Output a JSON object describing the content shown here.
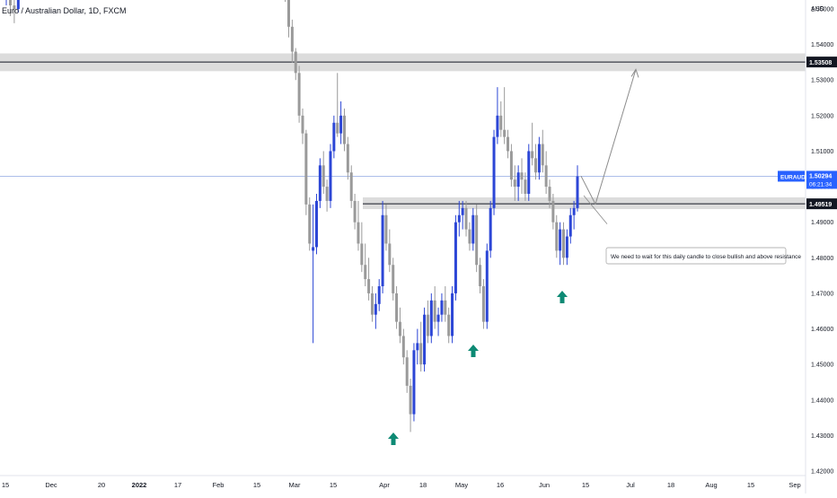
{
  "chart_data": {
    "type": "candlestick",
    "title": "Euro / Australian Dollar, 1D, FXCM",
    "currency": "AUD",
    "symbol": "EURAUD",
    "last_price": 1.50294,
    "countdown": "06:21:34",
    "ylim": [
      1.42,
      1.563
    ],
    "y_ticks": [
      1.42,
      1.43,
      1.44,
      1.45,
      1.46,
      1.47,
      1.48,
      1.49,
      1.5,
      1.51,
      1.52,
      1.53,
      1.54,
      1.55
    ],
    "x_ticks": [
      "15",
      "Dec",
      "20",
      "2022",
      "17",
      "Feb",
      "15",
      "Mar",
      "15",
      "Apr",
      "18",
      "May",
      "16",
      "Jun",
      "15",
      "Jul",
      "18",
      "Aug",
      "15",
      "Sep"
    ],
    "levels": [
      {
        "name": "resistance-upper",
        "value": 1.53508,
        "label": "1.53508",
        "zone": [
          1.5325,
          1.5375
        ]
      },
      {
        "name": "resistance-lower",
        "value": 1.49519,
        "label": "1.49519",
        "zone": [
          1.4937,
          1.497
        ]
      }
    ],
    "annotation": "We need to wait for this daily candle to close bullish and above resistance",
    "arrows": [
      {
        "label": "higher-low-1",
        "date_index": 0
      },
      {
        "label": "higher-low-2",
        "date_index": 1
      },
      {
        "label": "higher-low-3",
        "date_index": 2
      }
    ],
    "bullish_color": "#2c46d6",
    "bearish_color": "#9a9a9a",
    "arrow_color": "#0d8a74",
    "candles": [
      [
        1.556,
        1.564,
        1.551,
        1.56
      ],
      [
        1.56,
        1.562,
        1.548,
        1.551
      ],
      [
        1.551,
        1.556,
        1.546,
        1.55
      ],
      [
        1.55,
        1.564,
        1.549,
        1.561
      ],
      [
        1.561,
        1.566,
        1.556,
        1.558
      ],
      [
        1.558,
        1.564,
        1.553,
        1.562
      ],
      [
        1.562,
        1.565,
        1.555,
        1.557
      ],
      [
        1.557,
        1.562,
        1.554,
        1.56
      ],
      [
        1.56,
        1.565,
        1.558,
        1.564
      ],
      [
        1.564,
        1.566,
        1.558,
        1.56
      ],
      [
        1.572,
        1.576,
        1.568,
        1.57
      ],
      [
        1.57,
        1.574,
        1.566,
        1.568
      ],
      [
        1.568,
        1.57,
        1.56,
        1.562
      ],
      [
        1.562,
        1.568,
        1.559,
        1.566
      ],
      [
        1.566,
        1.57,
        1.564,
        1.568
      ],
      [
        1.568,
        1.57,
        1.56,
        1.562
      ],
      [
        1.562,
        1.566,
        1.558,
        1.56
      ],
      [
        1.56,
        1.564,
        1.556,
        1.558
      ],
      [
        1.558,
        1.562,
        1.552,
        1.556
      ],
      [
        1.556,
        1.558,
        1.542,
        1.545
      ],
      [
        1.545,
        1.547,
        1.535,
        1.538
      ],
      [
        1.538,
        1.539,
        1.53,
        1.532
      ],
      [
        1.532,
        1.534,
        1.518,
        1.52
      ],
      [
        1.52,
        1.522,
        1.512,
        1.515
      ],
      [
        1.515,
        1.516,
        1.492,
        1.495
      ],
      [
        1.495,
        1.497,
        1.482,
        1.484
      ],
      [
        1.482,
        1.495,
        1.456,
        1.483
      ],
      [
        1.483,
        1.498,
        1.481,
        1.496
      ],
      [
        1.496,
        1.508,
        1.494,
        1.506
      ],
      [
        1.506,
        1.51,
        1.498,
        1.5
      ],
      [
        1.5,
        1.502,
        1.493,
        1.496
      ],
      [
        1.496,
        1.512,
        1.494,
        1.51
      ],
      [
        1.51,
        1.52,
        1.508,
        1.518
      ],
      [
        1.518,
        1.532,
        1.514,
        1.515
      ],
      [
        1.515,
        1.524,
        1.512,
        1.52
      ],
      [
        1.52,
        1.522,
        1.51,
        1.512
      ],
      [
        1.512,
        1.514,
        1.502,
        1.504
      ],
      [
        1.504,
        1.506,
        1.494,
        1.496
      ],
      [
        1.496,
        1.498,
        1.488,
        1.49
      ],
      [
        1.49,
        1.496,
        1.482,
        1.484
      ],
      [
        1.484,
        1.49,
        1.476,
        1.478
      ],
      [
        1.478,
        1.484,
        1.472,
        1.474
      ],
      [
        1.474,
        1.48,
        1.468,
        1.47
      ],
      [
        1.47,
        1.472,
        1.462,
        1.464
      ],
      [
        1.464,
        1.47,
        1.46,
        1.467
      ],
      [
        1.467,
        1.474,
        1.465,
        1.472
      ],
      [
        1.472,
        1.496,
        1.47,
        1.492
      ],
      [
        1.492,
        1.495,
        1.482,
        1.484
      ],
      [
        1.484,
        1.488,
        1.476,
        1.478
      ],
      [
        1.478,
        1.48,
        1.468,
        1.47
      ],
      [
        1.47,
        1.472,
        1.46,
        1.462
      ],
      [
        1.462,
        1.466,
        1.456,
        1.458
      ],
      [
        1.458,
        1.46,
        1.45,
        1.452
      ],
      [
        1.452,
        1.454,
        1.442,
        1.444
      ],
      [
        1.444,
        1.446,
        1.431,
        1.436
      ],
      [
        1.436,
        1.456,
        1.434,
        1.454
      ],
      [
        1.454,
        1.46,
        1.45,
        1.456
      ],
      [
        1.456,
        1.462,
        1.448,
        1.45
      ],
      [
        1.45,
        1.466,
        1.448,
        1.464
      ],
      [
        1.464,
        1.468,
        1.456,
        1.458
      ],
      [
        1.458,
        1.47,
        1.456,
        1.468
      ],
      [
        1.468,
        1.472,
        1.46,
        1.462
      ],
      [
        1.462,
        1.466,
        1.458,
        1.464
      ],
      [
        1.464,
        1.47,
        1.462,
        1.468
      ],
      [
        1.468,
        1.472,
        1.462,
        1.464
      ],
      [
        1.464,
        1.466,
        1.456,
        1.458
      ],
      [
        1.458,
        1.472,
        1.456,
        1.47
      ],
      [
        1.47,
        1.492,
        1.468,
        1.49
      ],
      [
        1.49,
        1.496,
        1.486,
        1.492
      ],
      [
        1.492,
        1.496,
        1.488,
        1.494
      ],
      [
        1.494,
        1.496,
        1.486,
        1.488
      ],
      [
        1.488,
        1.49,
        1.482,
        1.484
      ],
      [
        1.484,
        1.494,
        1.482,
        1.492
      ],
      [
        1.492,
        1.495,
        1.476,
        1.478
      ],
      [
        1.478,
        1.48,
        1.47,
        1.472
      ],
      [
        1.472,
        1.474,
        1.46,
        1.462
      ],
      [
        1.462,
        1.484,
        1.46,
        1.482
      ],
      [
        1.482,
        1.496,
        1.48,
        1.494
      ],
      [
        1.494,
        1.516,
        1.492,
        1.514
      ],
      [
        1.514,
        1.528,
        1.512,
        1.52
      ],
      [
        1.52,
        1.524,
        1.514,
        1.516
      ],
      [
        1.516,
        1.528,
        1.512,
        1.514
      ],
      [
        1.514,
        1.516,
        1.508,
        1.51
      ],
      [
        1.51,
        1.512,
        1.5,
        1.502
      ],
      [
        1.502,
        1.506,
        1.496,
        1.5
      ],
      [
        1.5,
        1.506,
        1.496,
        1.504
      ],
      [
        1.504,
        1.508,
        1.498,
        1.502
      ],
      [
        1.502,
        1.504,
        1.496,
        1.498
      ],
      [
        1.498,
        1.512,
        1.496,
        1.51
      ],
      [
        1.51,
        1.518,
        1.506,
        1.508
      ],
      [
        1.508,
        1.512,
        1.502,
        1.504
      ],
      [
        1.504,
        1.514,
        1.502,
        1.512
      ],
      [
        1.512,
        1.516,
        1.504,
        1.506
      ],
      [
        1.506,
        1.51,
        1.498,
        1.5
      ],
      [
        1.5,
        1.502,
        1.494,
        1.496
      ],
      [
        1.496,
        1.498,
        1.488,
        1.49
      ],
      [
        1.49,
        1.492,
        1.48,
        1.482
      ],
      [
        1.482,
        1.49,
        1.478,
        1.488
      ],
      [
        1.488,
        1.49,
        1.478,
        1.48
      ],
      [
        1.48,
        1.488,
        1.478,
        1.486
      ],
      [
        1.486,
        1.494,
        1.484,
        1.492
      ],
      [
        1.492,
        1.496,
        1.488,
        1.494
      ],
      [
        1.494,
        1.506,
        1.493,
        1.5029
      ]
    ]
  },
  "price_scale": {
    "currency_label": "AUD",
    "symbol_badge": "EURAUD",
    "last_price_label": "1.50294",
    "countdown_label": "06:21:34",
    "upper_level_label": "1.53508",
    "lower_level_label": "1.49519"
  }
}
